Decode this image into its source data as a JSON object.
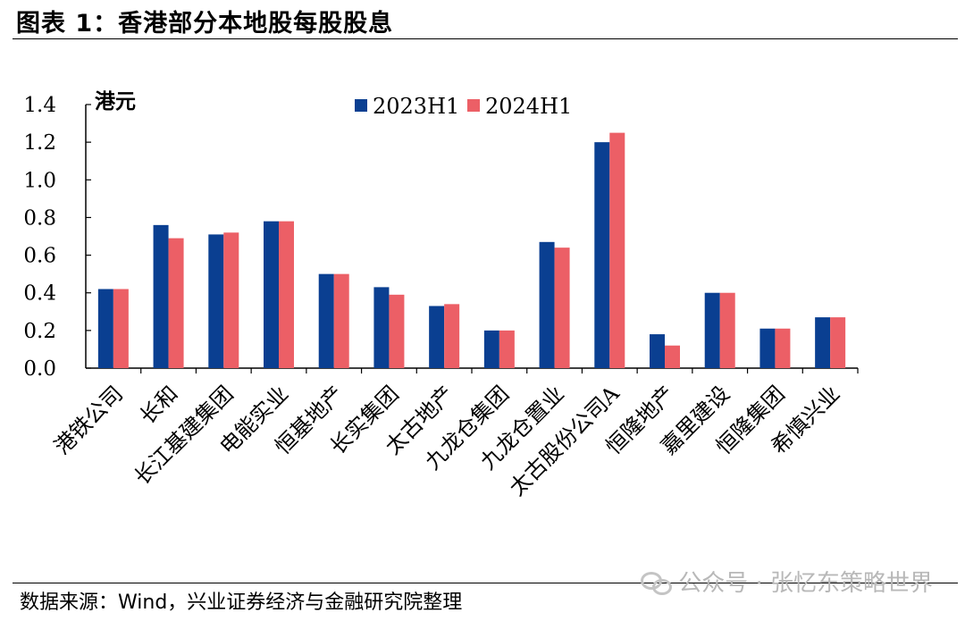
{
  "header": {
    "title": "图表 1：香港部分本地股每股股息"
  },
  "footer": {
    "source": "数据来源：Wind，兴业证券经济与金融研究院整理"
  },
  "watermark": {
    "text": "公众号 · 张忆东策略世界",
    "icon": "wechat-icon"
  },
  "colors": {
    "series_2023": "#0a3f91",
    "series_2024": "#ec5f66"
  },
  "chart_data": {
    "type": "bar",
    "title": "图表 1：香港部分本地股每股股息",
    "ylabel": "港元",
    "xlabel": "",
    "ylim": [
      0,
      1.4
    ],
    "yticks": [
      0.0,
      0.2,
      0.4,
      0.6,
      0.8,
      1.0,
      1.2,
      1.4
    ],
    "ytick_labels": [
      "0.0",
      "0.2",
      "0.4",
      "0.6",
      "0.8",
      "1.0",
      "1.2",
      "1.4"
    ],
    "grid": false,
    "legend": "top-center",
    "categories": [
      "港铁公司",
      "长和",
      "长江基建集团",
      "电能实业",
      "恒基地产",
      "长实集团",
      "太古地产",
      "九龙仓集团",
      "九龙仓置业",
      "太古股份公司A",
      "恒隆地产",
      "嘉里建设",
      "恒隆集团",
      "希慎兴业"
    ],
    "series": [
      {
        "name": "2023H1",
        "color": "#0a3f91",
        "values": [
          0.42,
          0.76,
          0.71,
          0.78,
          0.5,
          0.43,
          0.33,
          0.2,
          0.67,
          1.2,
          0.18,
          0.4,
          0.21,
          0.27
        ]
      },
      {
        "name": "2024H1",
        "color": "#ec5f66",
        "values": [
          0.42,
          0.69,
          0.72,
          0.78,
          0.5,
          0.39,
          0.34,
          0.2,
          0.64,
          1.25,
          0.12,
          0.4,
          0.21,
          0.27
        ]
      }
    ]
  }
}
